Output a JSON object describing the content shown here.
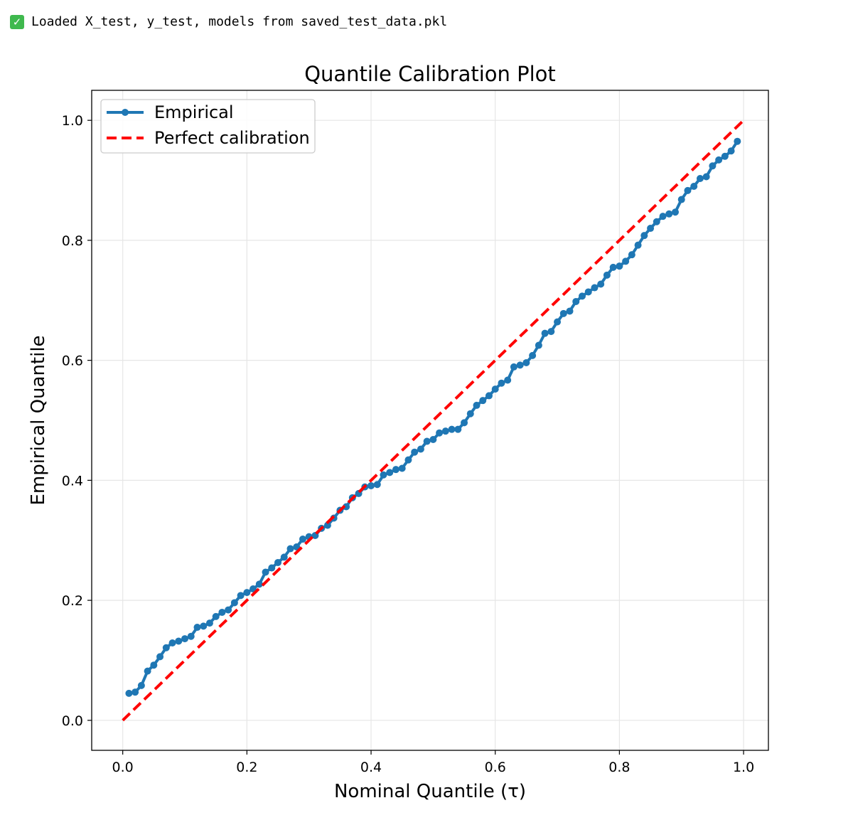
{
  "output": {
    "status_icon": "check-mark-icon",
    "message": "Loaded X_test, y_test, models from saved_test_data.pkl"
  },
  "chart_data": {
    "type": "line",
    "title": "Quantile Calibration Plot",
    "xlabel": "Nominal Quantile (τ)",
    "ylabel": "Empirical Quantile",
    "xlim": [
      -0.05,
      1.04
    ],
    "ylim": [
      -0.05,
      1.05
    ],
    "xticks": [
      "0.0",
      "0.2",
      "0.4",
      "0.6",
      "0.8",
      "1.0"
    ],
    "yticks": [
      "0.0",
      "0.2",
      "0.4",
      "0.6",
      "0.8",
      "1.0"
    ],
    "grid": true,
    "legend_position": "top-left",
    "series": [
      {
        "name": "Empirical",
        "color": "#1f77b4",
        "style": "solid-with-dots",
        "x": [
          0.01,
          0.02,
          0.03,
          0.04,
          0.05,
          0.06,
          0.07,
          0.08,
          0.09,
          0.1,
          0.11,
          0.12,
          0.13,
          0.14,
          0.15,
          0.16,
          0.17,
          0.18,
          0.19,
          0.2,
          0.21,
          0.22,
          0.23,
          0.24,
          0.25,
          0.26,
          0.27,
          0.28,
          0.29,
          0.3,
          0.31,
          0.32,
          0.33,
          0.34,
          0.35,
          0.36,
          0.37,
          0.38,
          0.39,
          0.4,
          0.41,
          0.42,
          0.43,
          0.44,
          0.45,
          0.46,
          0.47,
          0.48,
          0.49,
          0.5,
          0.51,
          0.52,
          0.53,
          0.54,
          0.55,
          0.56,
          0.57,
          0.58,
          0.59,
          0.6,
          0.61,
          0.62,
          0.63,
          0.64,
          0.65,
          0.66,
          0.67,
          0.68,
          0.69,
          0.7,
          0.71,
          0.72,
          0.73,
          0.74,
          0.75,
          0.76,
          0.77,
          0.78,
          0.79,
          0.8,
          0.81,
          0.82,
          0.83,
          0.84,
          0.85,
          0.86,
          0.87,
          0.88,
          0.89,
          0.9,
          0.91,
          0.92,
          0.93,
          0.94,
          0.95,
          0.96,
          0.97,
          0.98,
          0.99
        ],
        "y": [
          0.045,
          0.047,
          0.058,
          0.082,
          0.092,
          0.106,
          0.121,
          0.129,
          0.132,
          0.136,
          0.14,
          0.155,
          0.157,
          0.162,
          0.173,
          0.18,
          0.184,
          0.196,
          0.208,
          0.213,
          0.219,
          0.227,
          0.247,
          0.254,
          0.263,
          0.272,
          0.286,
          0.289,
          0.302,
          0.306,
          0.308,
          0.32,
          0.325,
          0.337,
          0.35,
          0.356,
          0.371,
          0.378,
          0.389,
          0.391,
          0.393,
          0.409,
          0.413,
          0.418,
          0.42,
          0.434,
          0.447,
          0.452,
          0.465,
          0.468,
          0.479,
          0.482,
          0.485,
          0.485,
          0.496,
          0.511,
          0.525,
          0.533,
          0.541,
          0.552,
          0.562,
          0.567,
          0.589,
          0.592,
          0.596,
          0.608,
          0.625,
          0.645,
          0.648,
          0.664,
          0.678,
          0.682,
          0.698,
          0.707,
          0.714,
          0.721,
          0.727,
          0.742,
          0.755,
          0.757,
          0.765,
          0.776,
          0.792,
          0.808,
          0.82,
          0.831,
          0.84,
          0.844,
          0.847,
          0.868,
          0.883,
          0.89,
          0.903,
          0.906,
          0.924,
          0.934,
          0.94,
          0.949,
          0.965
        ]
      },
      {
        "name": "Perfect calibration",
        "color": "#ff0000",
        "style": "dashed",
        "x": [
          0.0,
          1.0
        ],
        "y": [
          0.0,
          1.0
        ]
      }
    ]
  }
}
